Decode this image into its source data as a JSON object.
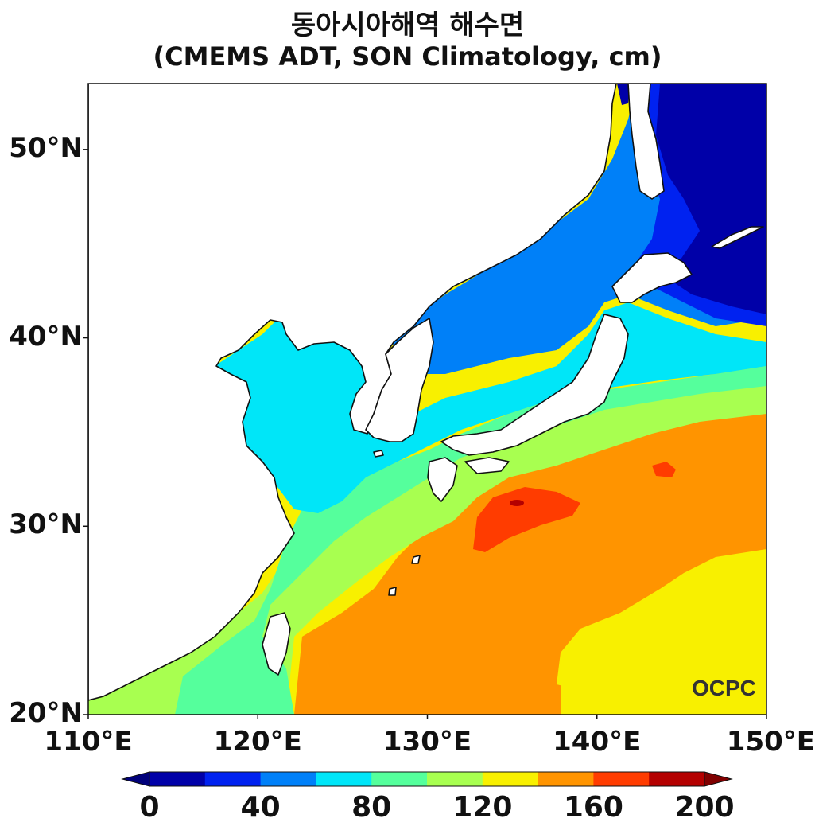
{
  "title_line1": "동아시아해역 해수면",
  "title_line2": "(CMEMS ADT, SON Climatology, cm)",
  "axes": {
    "lon_range": [
      110,
      150
    ],
    "lat_range": [
      20,
      53.5
    ],
    "x_ticks": [
      {
        "value": 110,
        "label": "110°E"
      },
      {
        "value": 120,
        "label": "120°E"
      },
      {
        "value": 130,
        "label": "130°E"
      },
      {
        "value": 140,
        "label": "140°E"
      },
      {
        "value": 150,
        "label": "150°E"
      }
    ],
    "y_ticks": [
      {
        "value": 20,
        "label": "20°N"
      },
      {
        "value": 30,
        "label": "30°N"
      },
      {
        "value": 40,
        "label": "40°N"
      },
      {
        "value": 50,
        "label": "50°N"
      }
    ]
  },
  "colorbar": {
    "range": [
      0,
      200
    ],
    "step": 20,
    "extend": "both",
    "colors": [
      "#0000a8",
      "#0022f0",
      "#0080f8",
      "#00e6f8",
      "#55ff9c",
      "#a8ff50",
      "#f8f000",
      "#ff9400",
      "#ff3c00",
      "#b40000"
    ],
    "ticks": [
      {
        "value": 0,
        "label": "0"
      },
      {
        "value": 40,
        "label": "40"
      },
      {
        "value": 80,
        "label": "80"
      },
      {
        "value": 120,
        "label": "120"
      },
      {
        "value": 160,
        "label": "160"
      },
      {
        "value": 200,
        "label": "200"
      }
    ]
  },
  "logo_text": "OCPC",
  "chart_data": {
    "type": "heatmap",
    "title": "동아시아해역 해수면 (CMEMS ADT, SON Climatology, cm)",
    "x_range": [
      110,
      150
    ],
    "y_range": [
      20,
      53.5
    ],
    "value_range": [
      0,
      200
    ]
  }
}
